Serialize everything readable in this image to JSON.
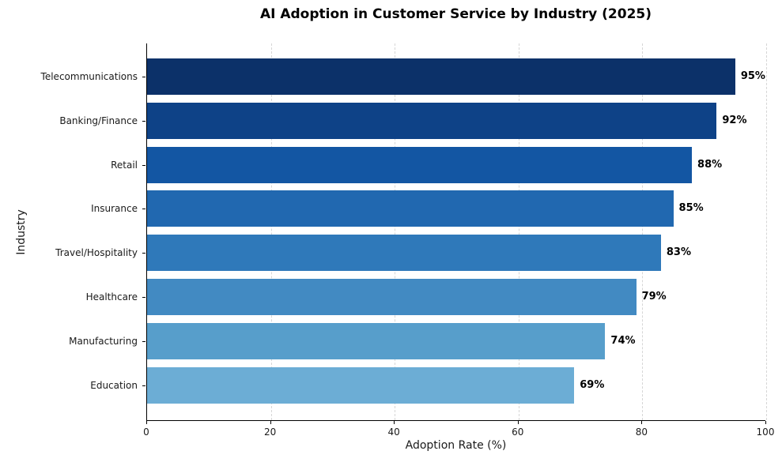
{
  "chart_data": {
    "type": "bar",
    "orientation": "horizontal",
    "title": "AI Adoption in Customer Service by Industry (2025)",
    "xlabel": "Adoption Rate (%)",
    "ylabel": "Industry",
    "categories": [
      "Telecommunications",
      "Banking/Finance",
      "Retail",
      "Insurance",
      "Travel/Hospitality",
      "Healthcare",
      "Manufacturing",
      "Education"
    ],
    "values": [
      95,
      92,
      88,
      85,
      83,
      79,
      74,
      69
    ],
    "value_labels": [
      "95%",
      "92%",
      "88%",
      "85%",
      "83%",
      "79%",
      "74%",
      "69%"
    ],
    "bar_colors": [
      "#0c3169",
      "#0e4287",
      "#1356a3",
      "#2168b0",
      "#2f79ba",
      "#428ac2",
      "#579ecb",
      "#6cadd5"
    ],
    "xlim": [
      0,
      100
    ],
    "xticks": [
      0,
      20,
      40,
      60,
      80,
      100
    ],
    "grid": "vertical-dashed",
    "grid_color": "#d6d6d6",
    "axis_color": "#000000",
    "legend": "none"
  }
}
